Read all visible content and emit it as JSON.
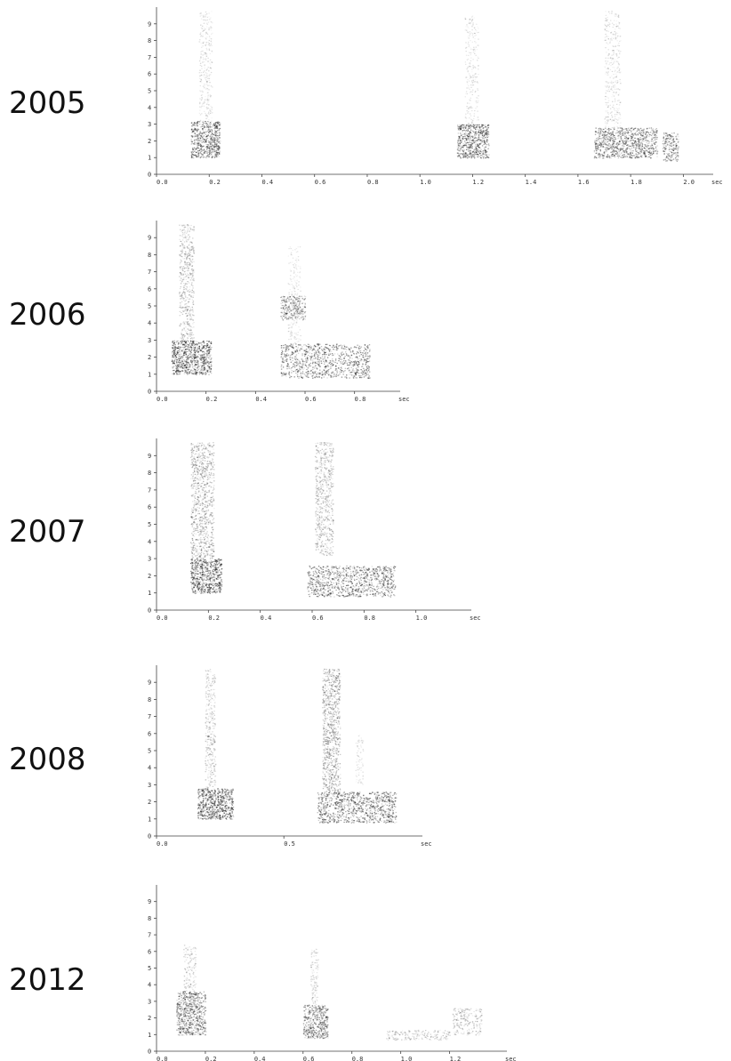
{
  "chart_data": [
    {
      "type": "heatmap",
      "label": "2005",
      "xlim": [
        0,
        2.1
      ],
      "ylim": [
        0,
        10
      ],
      "y_ticks": [
        "0",
        "1",
        "2",
        "3",
        "4",
        "5",
        "6",
        "7",
        "8",
        "9"
      ],
      "x_ticks": [
        [
          "0.0",
          0
        ],
        [
          "0.2",
          0.2
        ],
        [
          "0.4",
          0.4
        ],
        [
          "0.6",
          0.6
        ],
        [
          "0.8",
          0.8
        ],
        [
          "1.0",
          1.0
        ],
        [
          "1.2",
          1.2
        ],
        [
          "1.4",
          1.4
        ],
        [
          "1.6",
          1.6
        ],
        [
          "1.8",
          1.8
        ],
        [
          "2.0",
          2.0
        ]
      ],
      "x_unit": "sec",
      "notes": [
        {
          "t0": 0.13,
          "t1": 0.24,
          "f0": 1.0,
          "f1": 3.2,
          "d": 0.75
        },
        {
          "t0": 0.16,
          "t1": 0.21,
          "f0": 3.2,
          "f1": 9.8,
          "d": 0.25
        },
        {
          "t0": 1.14,
          "t1": 1.26,
          "f0": 1.0,
          "f1": 3.0,
          "d": 0.75
        },
        {
          "t0": 1.17,
          "t1": 1.22,
          "f0": 3.0,
          "f1": 9.5,
          "d": 0.22
        },
        {
          "t0": 1.66,
          "t1": 1.9,
          "f0": 1.0,
          "f1": 2.8,
          "d": 0.7
        },
        {
          "t0": 1.7,
          "t1": 1.76,
          "f0": 2.8,
          "f1": 9.8,
          "d": 0.25
        },
        {
          "t0": 1.92,
          "t1": 1.98,
          "f0": 0.8,
          "f1": 2.5,
          "d": 0.6
        }
      ]
    },
    {
      "type": "heatmap",
      "label": "2006",
      "xlim": [
        0,
        0.97
      ],
      "ylim": [
        0,
        10
      ],
      "y_ticks": [
        "0",
        "1",
        "2",
        "3",
        "4",
        "5",
        "6",
        "7",
        "8",
        "9"
      ],
      "x_ticks": [
        [
          "0.0",
          0
        ],
        [
          "0.2",
          0.2
        ],
        [
          "0.4",
          0.4
        ],
        [
          "0.6",
          0.6
        ],
        [
          "0.8",
          0.8
        ]
      ],
      "x_unit": "sec",
      "notes": [
        {
          "t0": 0.06,
          "t1": 0.22,
          "f0": 1.0,
          "f1": 3.0,
          "d": 0.8
        },
        {
          "t0": 0.09,
          "t1": 0.15,
          "f0": 3.0,
          "f1": 9.8,
          "d": 0.4
        },
        {
          "t0": 0.5,
          "t1": 0.86,
          "f0": 0.8,
          "f1": 2.8,
          "d": 0.75
        },
        {
          "t0": 0.5,
          "t1": 0.6,
          "f0": 4.2,
          "f1": 5.6,
          "d": 0.6
        },
        {
          "t0": 0.53,
          "t1": 0.58,
          "f0": 2.8,
          "f1": 8.5,
          "d": 0.2
        }
      ]
    },
    {
      "type": "heatmap",
      "label": "2007",
      "xlim": [
        0,
        1.2
      ],
      "ylim": [
        0,
        10
      ],
      "y_ticks": [
        "0",
        "1",
        "2",
        "3",
        "4",
        "5",
        "6",
        "7",
        "8",
        "9"
      ],
      "x_ticks": [
        [
          "0.0",
          0
        ],
        [
          "0.2",
          0.2
        ],
        [
          "0.4",
          0.4
        ],
        [
          "0.6",
          0.6
        ],
        [
          "0.8",
          0.8
        ],
        [
          "1.0",
          1.0
        ]
      ],
      "x_unit": "sec",
      "notes": [
        {
          "t0": 0.13,
          "t1": 0.25,
          "f0": 1.0,
          "f1": 3.0,
          "d": 0.8
        },
        {
          "t0": 0.13,
          "t1": 0.22,
          "f0": 3.0,
          "f1": 9.8,
          "d": 0.45
        },
        {
          "t0": 0.58,
          "t1": 0.92,
          "f0": 0.8,
          "f1": 2.6,
          "d": 0.75
        },
        {
          "t0": 0.61,
          "t1": 0.68,
          "f0": 3.2,
          "f1": 9.8,
          "d": 0.4
        }
      ]
    },
    {
      "type": "heatmap",
      "label": "2008",
      "xlim": [
        0,
        1.03
      ],
      "ylim": [
        0,
        10
      ],
      "y_ticks": [
        "0",
        "1",
        "2",
        "3",
        "4",
        "5",
        "6",
        "7",
        "8",
        "9"
      ],
      "x_ticks": [
        [
          "0.0",
          0
        ],
        [
          "0.5",
          0.5
        ]
      ],
      "x_unit": "sec",
      "notes": [
        {
          "t0": 0.16,
          "t1": 0.3,
          "f0": 1.0,
          "f1": 2.8,
          "d": 0.8
        },
        {
          "t0": 0.19,
          "t1": 0.23,
          "f0": 2.8,
          "f1": 9.8,
          "d": 0.35
        },
        {
          "t0": 0.63,
          "t1": 0.94,
          "f0": 0.8,
          "f1": 2.6,
          "d": 0.75
        },
        {
          "t0": 0.65,
          "t1": 0.72,
          "f0": 2.6,
          "f1": 9.8,
          "d": 0.5
        },
        {
          "t0": 0.78,
          "t1": 0.81,
          "f0": 3.0,
          "f1": 6.0,
          "d": 0.2
        }
      ]
    },
    {
      "type": "heatmap",
      "label": "2012",
      "xlim": [
        0,
        1.42
      ],
      "ylim": [
        0,
        10
      ],
      "y_ticks": [
        "0",
        "1",
        "2",
        "3",
        "4",
        "5",
        "6",
        "7",
        "8",
        "9"
      ],
      "x_ticks": [
        [
          "0.0",
          0
        ],
        [
          "0.2",
          0.2
        ],
        [
          "0.4",
          0.4
        ],
        [
          "0.6",
          0.6
        ],
        [
          "0.8",
          0.8
        ],
        [
          "1.0",
          1.0
        ],
        [
          "1.2",
          1.2
        ]
      ],
      "x_unit": "sec",
      "notes": [
        {
          "t0": 0.08,
          "t1": 0.2,
          "f0": 1.0,
          "f1": 3.6,
          "d": 0.7
        },
        {
          "t0": 0.11,
          "t1": 0.16,
          "f0": 3.6,
          "f1": 6.4,
          "d": 0.3
        },
        {
          "t0": 0.6,
          "t1": 0.7,
          "f0": 0.8,
          "f1": 2.8,
          "d": 0.7
        },
        {
          "t0": 0.63,
          "t1": 0.66,
          "f0": 2.8,
          "f1": 6.2,
          "d": 0.3
        },
        {
          "t0": 0.94,
          "t1": 1.2,
          "f0": 0.7,
          "f1": 1.3,
          "d": 0.35
        },
        {
          "t0": 1.21,
          "t1": 1.33,
          "f0": 1.0,
          "f1": 2.6,
          "d": 0.35
        }
      ]
    }
  ]
}
